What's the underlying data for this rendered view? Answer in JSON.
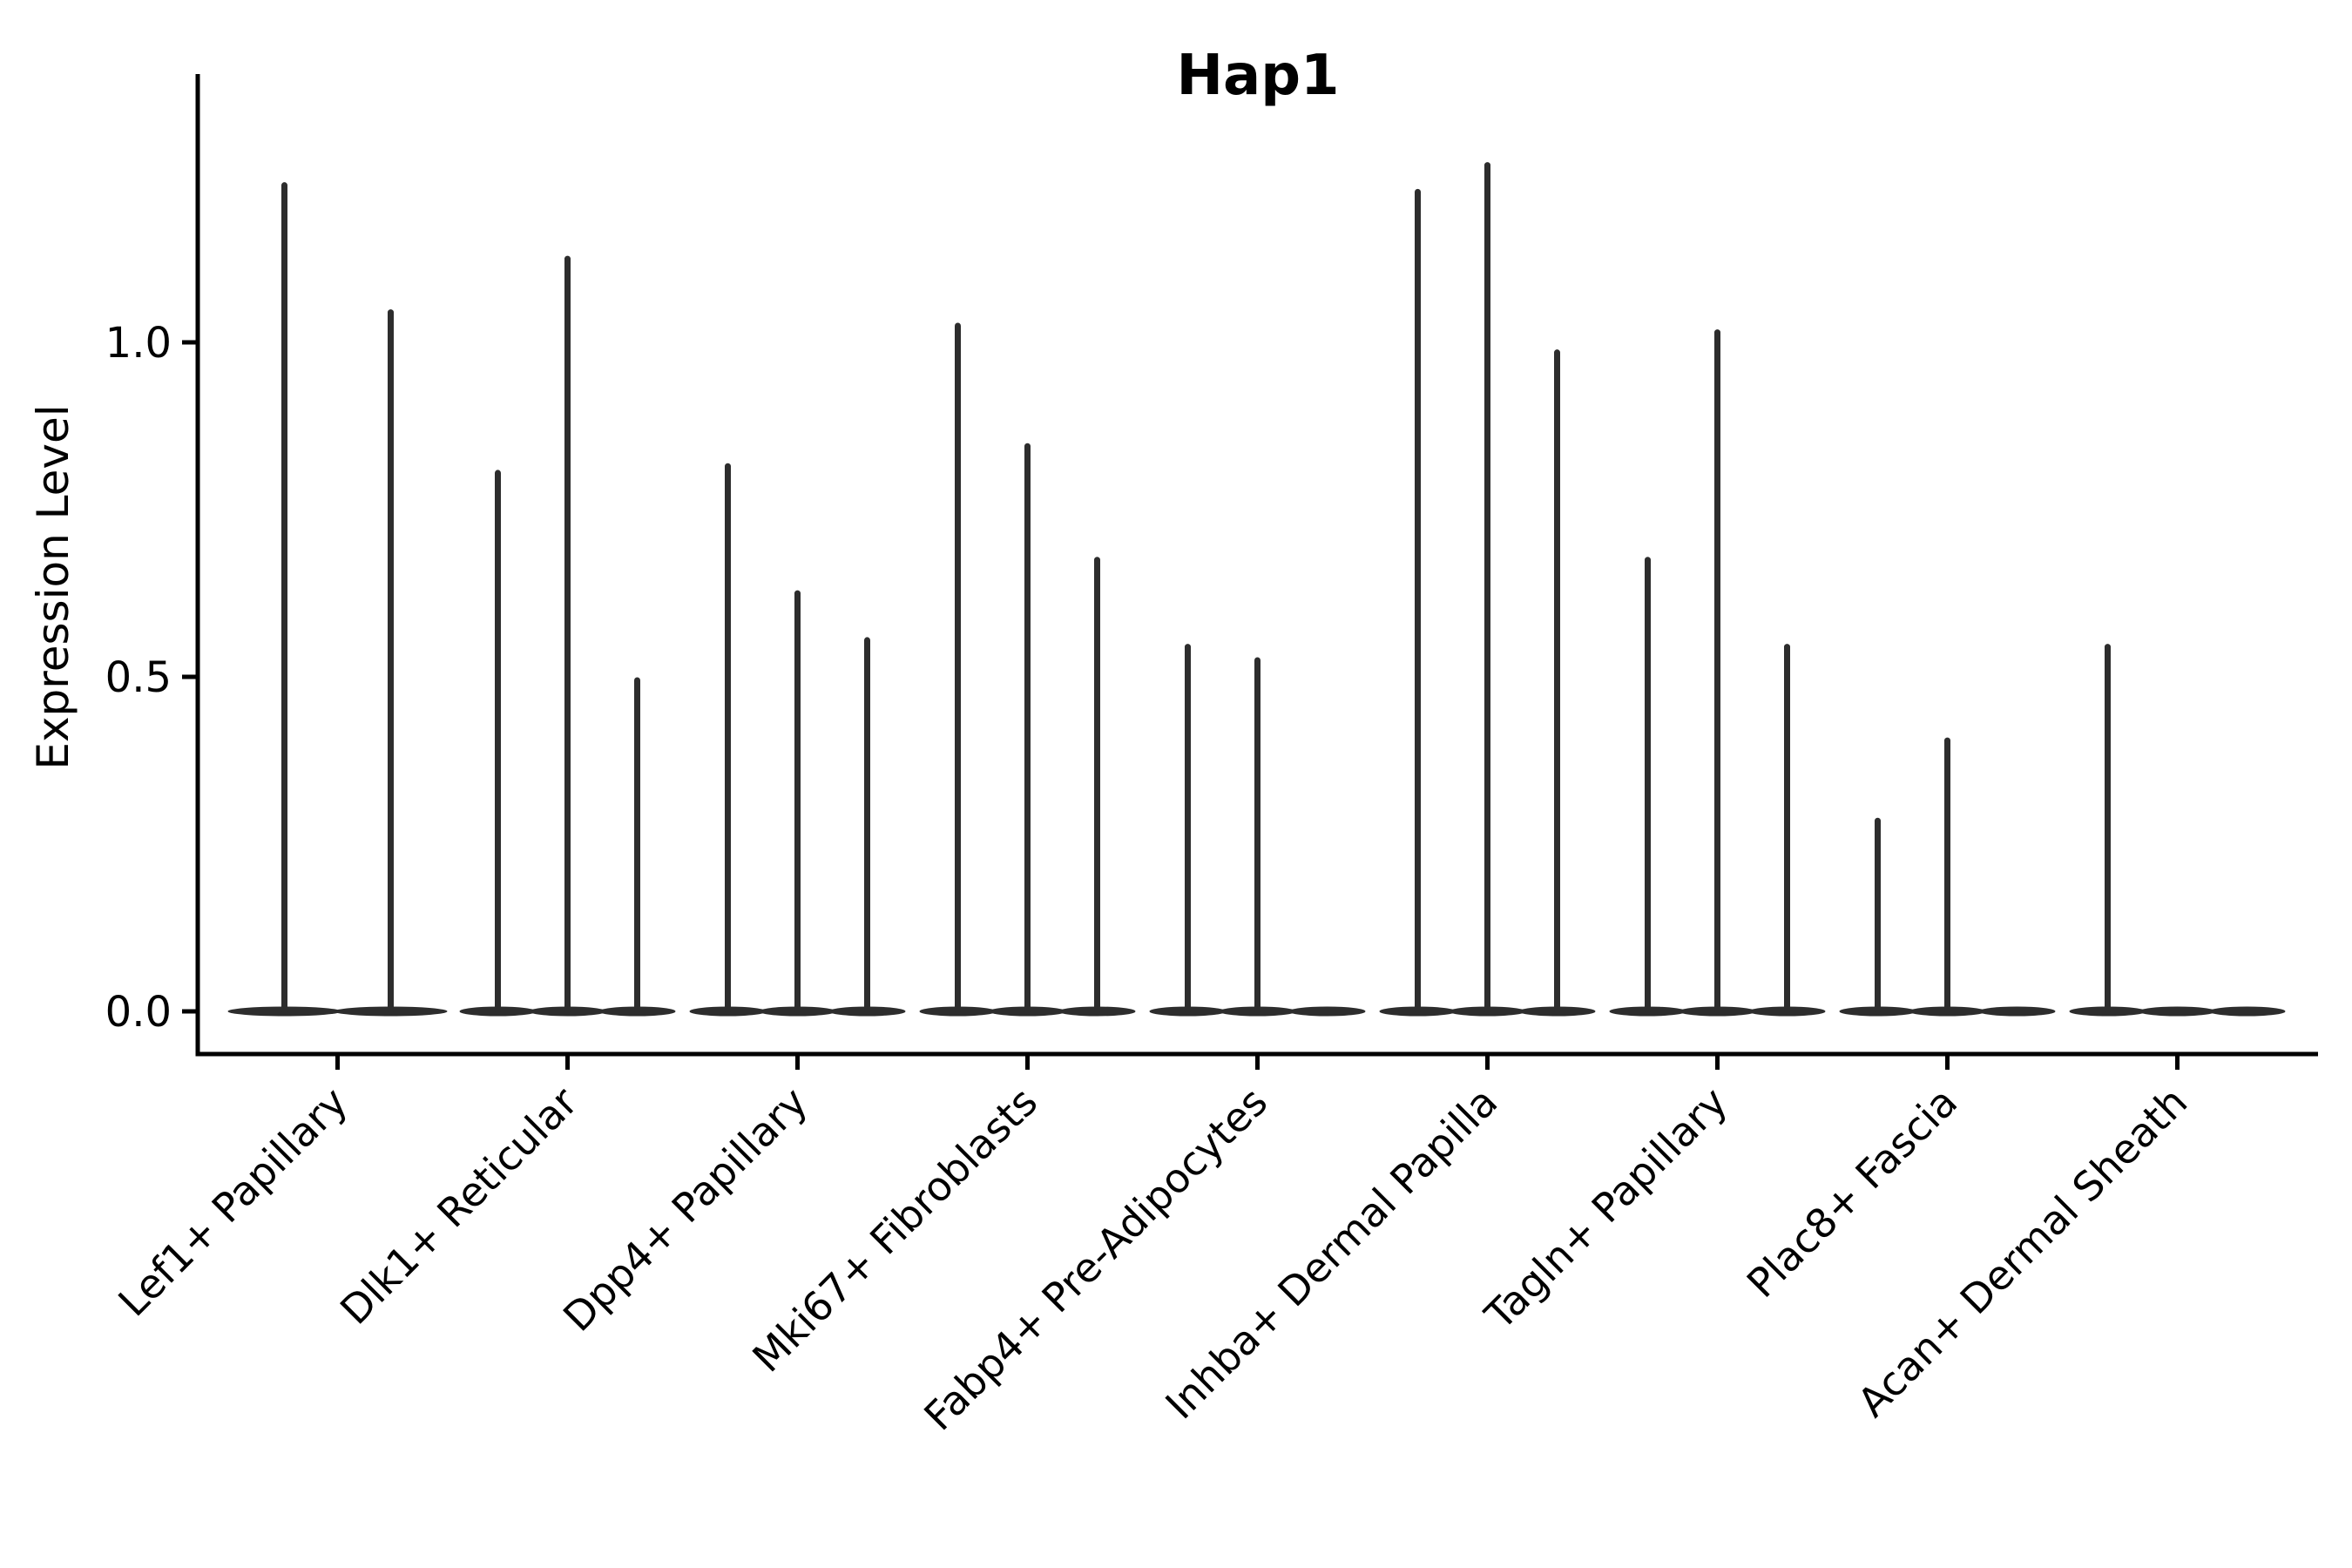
{
  "chart_data": {
    "type": "violin",
    "title": "Hap1",
    "xlabel": "",
    "ylabel": "Expression Level",
    "ylim": [
      -0.06,
      1.4
    ],
    "yticks": [
      0.0,
      0.5,
      1.0
    ],
    "ytick_labels": [
      "0.0",
      "0.5",
      "1.0"
    ],
    "grid": "off",
    "legend": "none",
    "spines": [
      "left",
      "bottom"
    ],
    "categories": [
      "Lef1+ Papillary",
      "Dlk1+ Reticular",
      "Dpp4+ Papillary",
      "Mki67+ Fibroblasts",
      "Fabp4+ Pre-Adipocytes",
      "Inhba+ Dermal Papilla",
      "Tagln+ Papillary",
      "Plac8+ Fascia",
      "Acan+ Dermal Sheath"
    ],
    "series": [
      {
        "category": "Lef1+ Papillary",
        "violin_maxima": [
          1.24,
          1.05
        ]
      },
      {
        "category": "Dlk1+ Reticular",
        "violin_maxima": [
          0.81,
          1.13,
          0.5
        ]
      },
      {
        "category": "Dpp4+ Papillary",
        "violin_maxima": [
          0.82,
          0.63,
          0.56
        ]
      },
      {
        "category": "Mki67+ Fibroblasts",
        "violin_maxima": [
          1.03,
          0.85,
          0.68
        ]
      },
      {
        "category": "Fabp4+ Pre-Adipocytes",
        "violin_maxima": [
          0.55,
          0.53,
          0.0
        ]
      },
      {
        "category": "Inhba+ Dermal Papilla",
        "violin_maxima": [
          1.23,
          1.27,
          0.99
        ]
      },
      {
        "category": "Tagln+ Papillary",
        "violin_maxima": [
          0.68,
          1.02,
          0.55
        ]
      },
      {
        "category": "Plac8+ Fascia",
        "violin_maxima": [
          0.29,
          0.41,
          0.0
        ]
      },
      {
        "category": "Acan+ Dermal Sheath",
        "violin_maxima": [
          0.55,
          0.0,
          0.0
        ]
      }
    ],
    "colors": {
      "violin": "#2d2d2d",
      "axis": "#000000",
      "background": "#ffffff"
    }
  }
}
